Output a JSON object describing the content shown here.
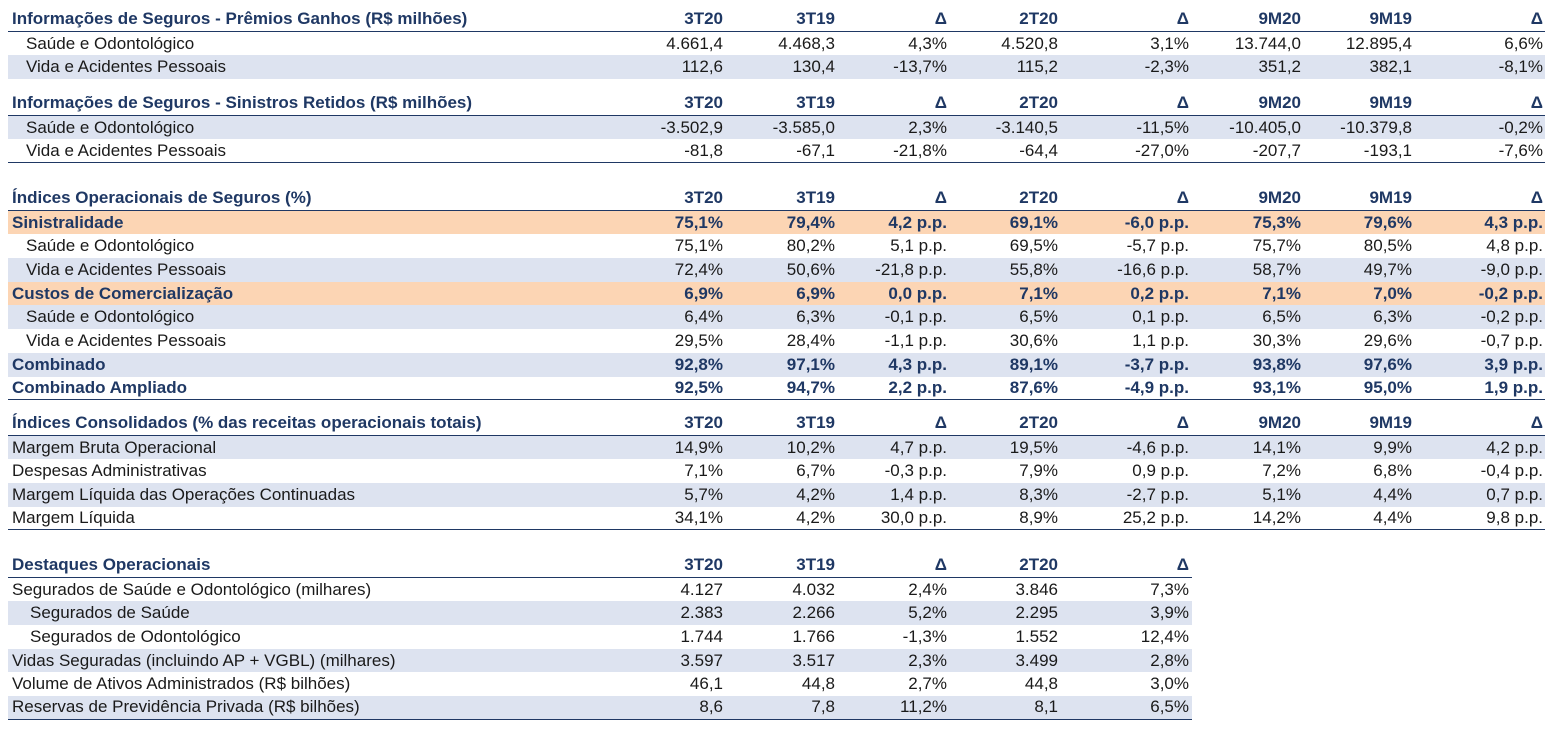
{
  "premios": {
    "title": "Informações de Seguros - Prêmios Ganhos (R$ milhões)",
    "cols": [
      "3T20",
      "3T19",
      "Δ",
      "2T20",
      "Δ",
      "9M20",
      "9M19",
      "Δ"
    ],
    "rows": [
      {
        "label": "Saúde e Odontológico",
        "v": [
          "4.661,4",
          "4.468,3",
          "4,3%",
          "4.520,8",
          "3,1%",
          "13.744,0",
          "12.895,4",
          "6,6%"
        ]
      },
      {
        "label": "Vida e Acidentes Pessoais",
        "v": [
          "112,6",
          "130,4",
          "-13,7%",
          "115,2",
          "-2,3%",
          "351,2",
          "382,1",
          "-8,1%"
        ]
      }
    ]
  },
  "sinistros": {
    "title": "Informações de Seguros - Sinistros Retidos (R$ milhões)",
    "cols": [
      "3T20",
      "3T19",
      "Δ",
      "2T20",
      "Δ",
      "9M20",
      "9M19",
      "Δ"
    ],
    "rows": [
      {
        "label": "Saúde e Odontológico",
        "v": [
          "-3.502,9",
          "-3.585,0",
          "2,3%",
          "-3.140,5",
          "-11,5%",
          "-10.405,0",
          "-10.379,8",
          "-0,2%"
        ]
      },
      {
        "label": "Vida e Acidentes Pessoais",
        "v": [
          "-81,8",
          "-67,1",
          "-21,8%",
          "-64,4",
          "-27,0%",
          "-207,7",
          "-193,1",
          "-7,6%"
        ]
      }
    ]
  },
  "indices_op": {
    "title": "Índices Operacionais de Seguros (%)",
    "cols": [
      "3T20",
      "3T19",
      "Δ",
      "2T20",
      "Δ",
      "9M20",
      "9M19",
      "Δ"
    ],
    "rows": [
      {
        "label": "Sinistralidade",
        "v": [
          "75,1%",
          "79,4%",
          "4,2 p.p.",
          "69,1%",
          "-6,0 p.p.",
          "75,3%",
          "79,6%",
          "4,3 p.p."
        ]
      },
      {
        "label": "Saúde e Odontológico",
        "v": [
          "75,1%",
          "80,2%",
          "5,1 p.p.",
          "69,5%",
          "-5,7 p.p.",
          "75,7%",
          "80,5%",
          "4,8 p.p."
        ]
      },
      {
        "label": "Vida e Acidentes Pessoais",
        "v": [
          "72,4%",
          "50,6%",
          "-21,8 p.p.",
          "55,8%",
          "-16,6 p.p.",
          "58,7%",
          "49,7%",
          "-9,0 p.p."
        ]
      },
      {
        "label": "Custos de Comercialização",
        "v": [
          "6,9%",
          "6,9%",
          "0,0 p.p.",
          "7,1%",
          "0,2 p.p.",
          "7,1%",
          "7,0%",
          "-0,2 p.p."
        ]
      },
      {
        "label": "Saúde e Odontológico",
        "v": [
          "6,4%",
          "6,3%",
          "-0,1 p.p.",
          "6,5%",
          "0,1 p.p.",
          "6,5%",
          "6,3%",
          "-0,2 p.p."
        ]
      },
      {
        "label": "Vida e Acidentes Pessoais",
        "v": [
          "29,5%",
          "28,4%",
          "-1,1 p.p.",
          "30,6%",
          "1,1 p.p.",
          "30,3%",
          "29,6%",
          "-0,7 p.p."
        ]
      },
      {
        "label": "Combinado",
        "v": [
          "92,8%",
          "97,1%",
          "4,3 p.p.",
          "89,1%",
          "-3,7 p.p.",
          "93,8%",
          "97,6%",
          "3,9 p.p."
        ]
      },
      {
        "label": "Combinado Ampliado",
        "v": [
          "92,5%",
          "94,7%",
          "2,2 p.p.",
          "87,6%",
          "-4,9 p.p.",
          "93,1%",
          "95,0%",
          "1,9 p.p."
        ]
      }
    ]
  },
  "indices_cons": {
    "title": "Índices Consolidados (% das receitas operacionais totais)",
    "cols": [
      "3T20",
      "3T19",
      "Δ",
      "2T20",
      "Δ",
      "9M20",
      "9M19",
      "Δ"
    ],
    "rows": [
      {
        "label": "Margem Bruta Operacional",
        "v": [
          "14,9%",
          "10,2%",
          "4,7 p.p.",
          "19,5%",
          "-4,6 p.p.",
          "14,1%",
          "9,9%",
          "4,2 p.p."
        ]
      },
      {
        "label": "Despesas Administrativas",
        "v": [
          "7,1%",
          "6,7%",
          "-0,3 p.p.",
          "7,9%",
          "0,9 p.p.",
          "7,2%",
          "6,8%",
          "-0,4 p.p."
        ]
      },
      {
        "label": "Margem Líquida das Operações Continuadas",
        "v": [
          "5,7%",
          "4,2%",
          "1,4 p.p.",
          "8,3%",
          "-2,7 p.p.",
          "5,1%",
          "4,4%",
          "0,7 p.p."
        ]
      },
      {
        "label": "Margem Líquida",
        "v": [
          "34,1%",
          "4,2%",
          "30,0 p.p.",
          "8,9%",
          "25,2 p.p.",
          "14,2%",
          "4,4%",
          "9,8 p.p."
        ]
      }
    ]
  },
  "destaques": {
    "title": "Destaques Operacionais",
    "cols": [
      "3T20",
      "3T19",
      "Δ",
      "2T20",
      "Δ"
    ],
    "rows": [
      {
        "label": "Segurados de Saúde e Odontológico (milhares)",
        "v": [
          "4.127",
          "4.032",
          "2,4%",
          "3.846",
          "7,3%"
        ]
      },
      {
        "label": "Segurados de Saúde",
        "v": [
          "2.383",
          "2.266",
          "5,2%",
          "2.295",
          "3,9%"
        ]
      },
      {
        "label": "Segurados de Odontológico",
        "v": [
          "1.744",
          "1.766",
          "-1,3%",
          "1.552",
          "12,4%"
        ]
      },
      {
        "label": "Vidas Seguradas (incluindo AP + VGBL) (milhares)",
        "v": [
          "3.597",
          "3.517",
          "2,3%",
          "3.499",
          "2,8%"
        ]
      },
      {
        "label": "Volume de Ativos Administrados (R$ bilhões)",
        "v": [
          "46,1",
          "44,8",
          "2,7%",
          "44,8",
          "3,0%"
        ]
      },
      {
        "label": "Reservas de Previdência Privada (R$ bilhões)",
        "v": [
          "8,6",
          "7,8",
          "11,2%",
          "8,1",
          "6,5%"
        ]
      }
    ]
  }
}
